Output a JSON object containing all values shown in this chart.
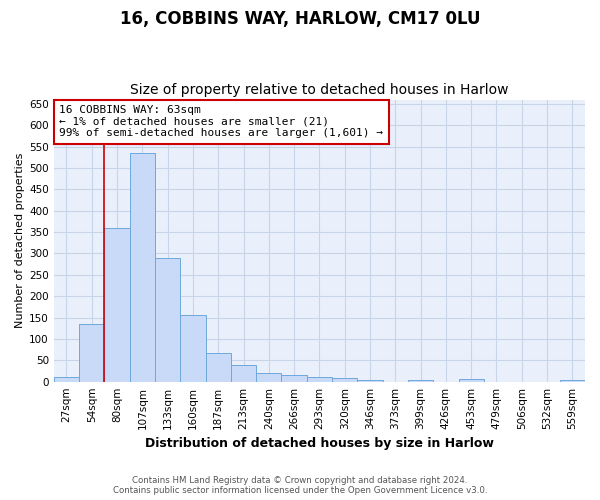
{
  "title1": "16, COBBINS WAY, HARLOW, CM17 0LU",
  "title2": "Size of property relative to detached houses in Harlow",
  "xlabel": "Distribution of detached houses by size in Harlow",
  "ylabel": "Number of detached properties",
  "bar_labels": [
    "27sqm",
    "54sqm",
    "80sqm",
    "107sqm",
    "133sqm",
    "160sqm",
    "187sqm",
    "213sqm",
    "240sqm",
    "266sqm",
    "293sqm",
    "320sqm",
    "346sqm",
    "373sqm",
    "399sqm",
    "426sqm",
    "453sqm",
    "479sqm",
    "506sqm",
    "532sqm",
    "559sqm"
  ],
  "bar_values": [
    10,
    135,
    360,
    535,
    290,
    155,
    68,
    38,
    20,
    16,
    11,
    9,
    5,
    0,
    5,
    0,
    6,
    0,
    0,
    0,
    5
  ],
  "bar_color": "#c9daf8",
  "bar_edge_color": "#6fa8dc",
  "vline_x": 1.5,
  "vline_color": "#cc0000",
  "annotation_line1": "16 COBBINS WAY: 63sqm",
  "annotation_line2": "← 1% of detached houses are smaller (21)",
  "annotation_line3": "99% of semi-detached houses are larger (1,601) →",
  "annotation_box_edge": "#cc0000",
  "annotation_box_face": "#ffffff",
  "ylim": [
    0,
    660
  ],
  "yticks": [
    0,
    50,
    100,
    150,
    200,
    250,
    300,
    350,
    400,
    450,
    500,
    550,
    600,
    650
  ],
  "footer1": "Contains HM Land Registry data © Crown copyright and database right 2024.",
  "footer2": "Contains public sector information licensed under the Open Government Licence v3.0.",
  "bg_color": "#ffffff",
  "plot_bg_color": "#eaf0fb",
  "grid_color": "#c8d4e8",
  "title1_fontsize": 12,
  "title2_fontsize": 10,
  "tick_fontsize": 7.5,
  "ylabel_fontsize": 8,
  "xlabel_fontsize": 9
}
